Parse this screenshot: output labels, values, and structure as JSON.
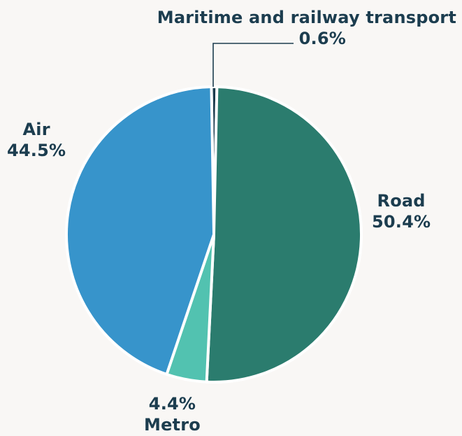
{
  "chart_data": {
    "type": "pie",
    "title": "",
    "slices": [
      {
        "name": "Maritime and railway transport",
        "value": 0.6,
        "label": "0.6%",
        "color": "#1a3a4c"
      },
      {
        "name": "Road",
        "value": 50.4,
        "label": "50.4%",
        "color": "#2b7c6e"
      },
      {
        "name": "Metro",
        "value": 4.4,
        "label": "4.4%",
        "color": "#52c2b0"
      },
      {
        "name": "Air",
        "value": 44.5,
        "label": "44.5%",
        "color": "#3794cb"
      }
    ],
    "legend": "none",
    "background": "#f9f7f5",
    "label_color": "#1c3d4f"
  }
}
